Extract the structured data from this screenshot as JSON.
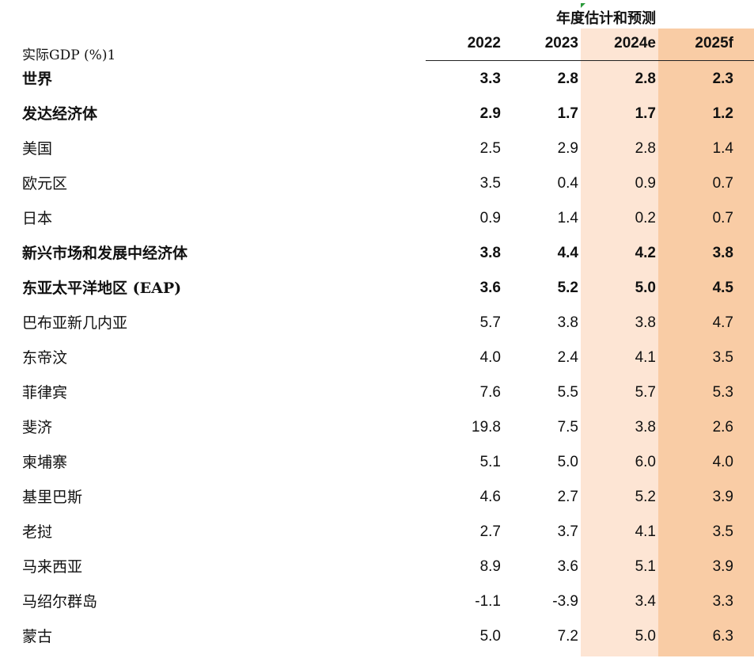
{
  "header": {
    "group_title": "年度估计和预测",
    "column_label": "实际GDP (%)1",
    "years": [
      "2022",
      "2023",
      "2024e",
      "2025f"
    ]
  },
  "rows": [
    {
      "label": "世界",
      "bold": true,
      "values": [
        "3.3",
        "2.8",
        "2.8",
        "2.3"
      ]
    },
    {
      "label": "发达经济体",
      "bold": true,
      "values": [
        "2.9",
        "1.7",
        "1.7",
        "1.2"
      ]
    },
    {
      "label": "美国",
      "bold": false,
      "values": [
        "2.5",
        "2.9",
        "2.8",
        "1.4"
      ]
    },
    {
      "label": "欧元区",
      "bold": false,
      "values": [
        "3.5",
        "0.4",
        "0.9",
        "0.7"
      ]
    },
    {
      "label": "日本",
      "bold": false,
      "values": [
        "0.9",
        "1.4",
        "0.2",
        "0.7"
      ]
    },
    {
      "label": "新兴市场和发展中经济体",
      "bold": true,
      "values": [
        "3.8",
        "4.4",
        "4.2",
        "3.8"
      ]
    },
    {
      "label": "东亚太平洋地区 (EAP)",
      "bold": true,
      "values": [
        "3.6",
        "5.2",
        "5.0",
        "4.5"
      ]
    },
    {
      "label": "巴布亚新几内亚",
      "bold": false,
      "values": [
        "5.7",
        "3.8",
        "3.8",
        "4.7"
      ]
    },
    {
      "label": "东帝汶",
      "bold": false,
      "values": [
        "4.0",
        "2.4",
        "4.1",
        "3.5"
      ]
    },
    {
      "label": "菲律宾",
      "bold": false,
      "values": [
        "7.6",
        "5.5",
        "5.7",
        "5.3"
      ]
    },
    {
      "label": "斐济",
      "bold": false,
      "values": [
        "19.8",
        "7.5",
        "3.8",
        "2.6"
      ]
    },
    {
      "label": "柬埔寨",
      "bold": false,
      "values": [
        "5.1",
        "5.0",
        "6.0",
        "4.0"
      ]
    },
    {
      "label": "基里巴斯",
      "bold": false,
      "values": [
        "4.6",
        "2.7",
        "5.2",
        "3.9"
      ]
    },
    {
      "label": "老挝",
      "bold": false,
      "values": [
        "2.7",
        "3.7",
        "4.1",
        "3.5"
      ]
    },
    {
      "label": "马来西亚",
      "bold": false,
      "values": [
        "8.9",
        "3.6",
        "5.1",
        "3.9"
      ]
    },
    {
      "label": "马绍尔群岛",
      "bold": false,
      "values": [
        "-1.1",
        "-3.9",
        "3.4",
        "3.3"
      ]
    },
    {
      "label": "蒙古",
      "bold": false,
      "values": [
        "5.0",
        "7.2",
        "5.0",
        "6.3"
      ]
    }
  ],
  "colors": {
    "estimate_shade": "#fde5d4",
    "forecast_shade": "#f9cca5"
  }
}
